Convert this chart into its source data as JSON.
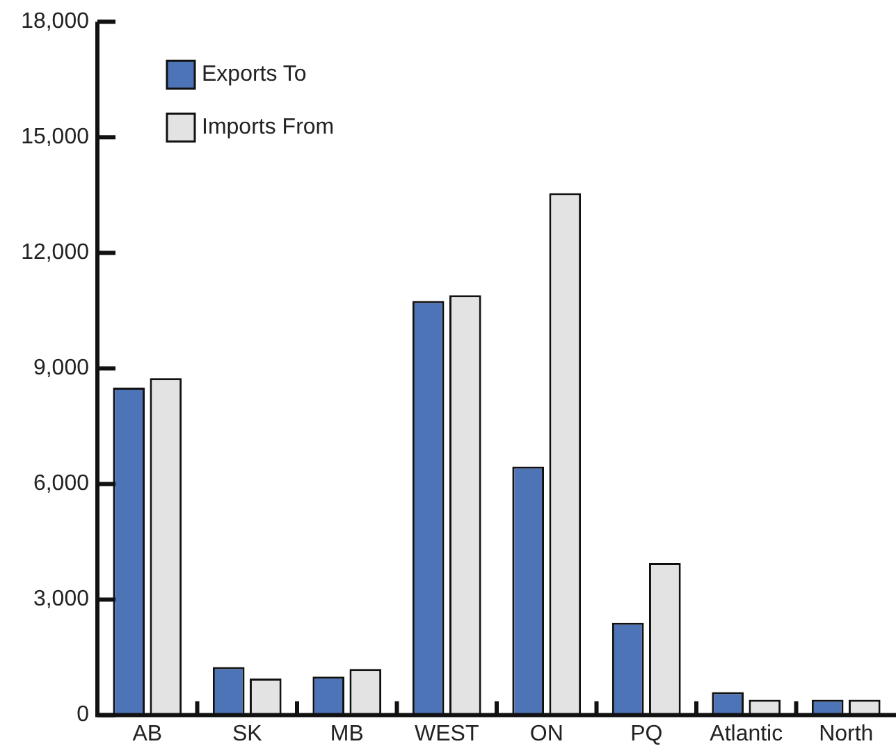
{
  "chart_data": {
    "type": "bar",
    "categories": [
      "AB",
      "SK",
      "MB",
      "WEST",
      "ON",
      "PQ",
      "Atlantic",
      "North"
    ],
    "series": [
      {
        "name": "Exports To",
        "color": "#4e74b8",
        "values": [
          8500,
          1250,
          1000,
          10750,
          6450,
          2400,
          600,
          400
        ]
      },
      {
        "name": "Imports From",
        "color": "#e3e3e3",
        "values": [
          8750,
          950,
          1200,
          10900,
          13550,
          3950,
          400,
          400
        ]
      }
    ],
    "ylim": [
      0,
      18000
    ],
    "yticks": [
      {
        "value": 0,
        "label": "0"
      },
      {
        "value": 3000,
        "label": "3,000"
      },
      {
        "value": 6000,
        "label": "6,000"
      },
      {
        "value": 9000,
        "label": "9,000"
      },
      {
        "value": 12000,
        "label": "12,000"
      },
      {
        "value": 15000,
        "label": "15,000"
      },
      {
        "value": 18000,
        "label": "18,000"
      }
    ],
    "grid": false,
    "legend": "top left"
  }
}
